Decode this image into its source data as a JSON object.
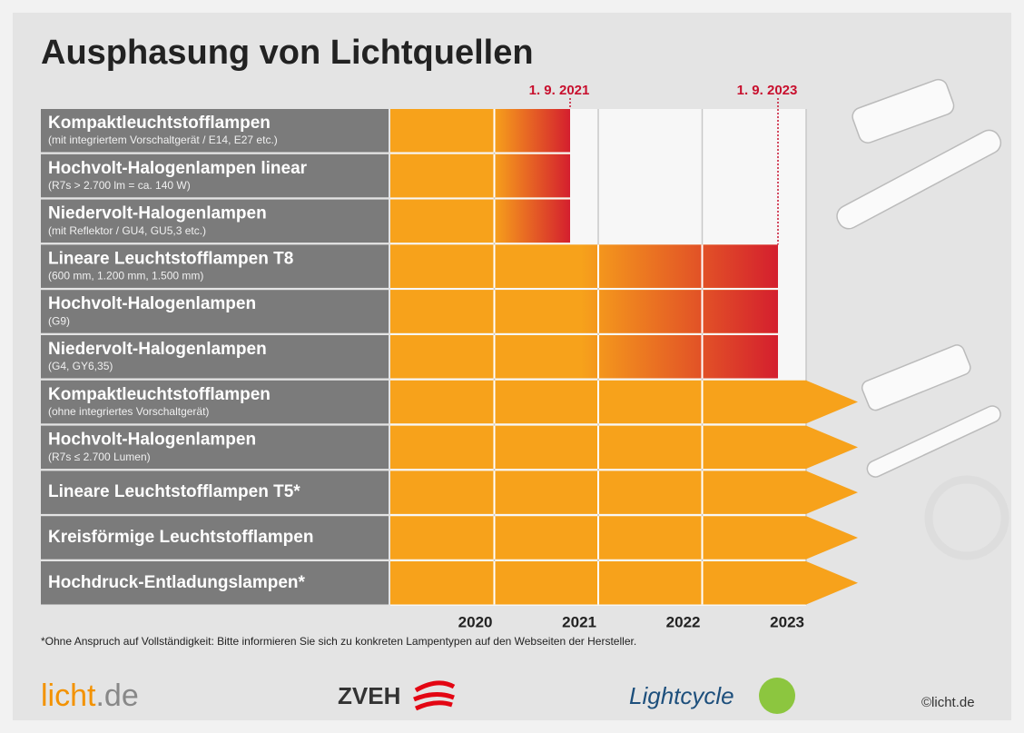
{
  "header": {
    "title": "Ausphasung von Lichtquellen"
  },
  "groups": [
    {
      "deadline": "1. 9. 2021",
      "rows": [
        {
          "title": "Kompaktleuchtstofflampen",
          "subtitle": "(mit integriertem Vorschaltgerät / E14, E27 etc.)"
        },
        {
          "title": "Hochvolt-Halogenlampen linear",
          "subtitle": "(R7s > 2.700 lm = ca. 140 W)"
        },
        {
          "title": "Niedervolt-Halogenlampen",
          "subtitle": "(mit Reflektor / GU4, GU5,3 etc.)"
        }
      ]
    },
    {
      "deadline": "1. 9. 2023",
      "rows": [
        {
          "title": "Lineare Leuchtstofflampen T8",
          "subtitle": "(600 mm, 1.200 mm, 1.500 mm)"
        },
        {
          "title": "Hochvolt-Halogenlampen",
          "subtitle": "(G9)"
        },
        {
          "title": "Niedervolt-Halogenlampen",
          "subtitle": "(G4, GY6,35)"
        }
      ]
    },
    {
      "rows": [
        {
          "title": "Kompaktleuchtstofflampen",
          "subtitle": "(ohne integriertes Vorschaltgerät)"
        },
        {
          "title": "Hochvolt-Halogenlampen",
          "subtitle": "(R7s ≤ 2.700 Lumen)"
        },
        {
          "title": "Lineare Leuchtstofflampen T5*"
        },
        {
          "title": "Kreisförmige Leuchtstofflampen"
        },
        {
          "title": "Hochdruck-Entladungslampen*"
        }
      ]
    }
  ],
  "years": [
    "2020",
    "2021",
    "2022",
    "2023"
  ],
  "footnote": "*Ohne Anspruch auf Vollständigkeit: Bitte informieren Sie sich zu konkreten Lampentypen auf den Webseiten der Hersteller.",
  "footer": {
    "licht": "licht",
    "licht_tld": ".de",
    "zveh": "ZVEH",
    "lightcycle": "Lightcycle",
    "copyright": "©licht.de"
  }
}
